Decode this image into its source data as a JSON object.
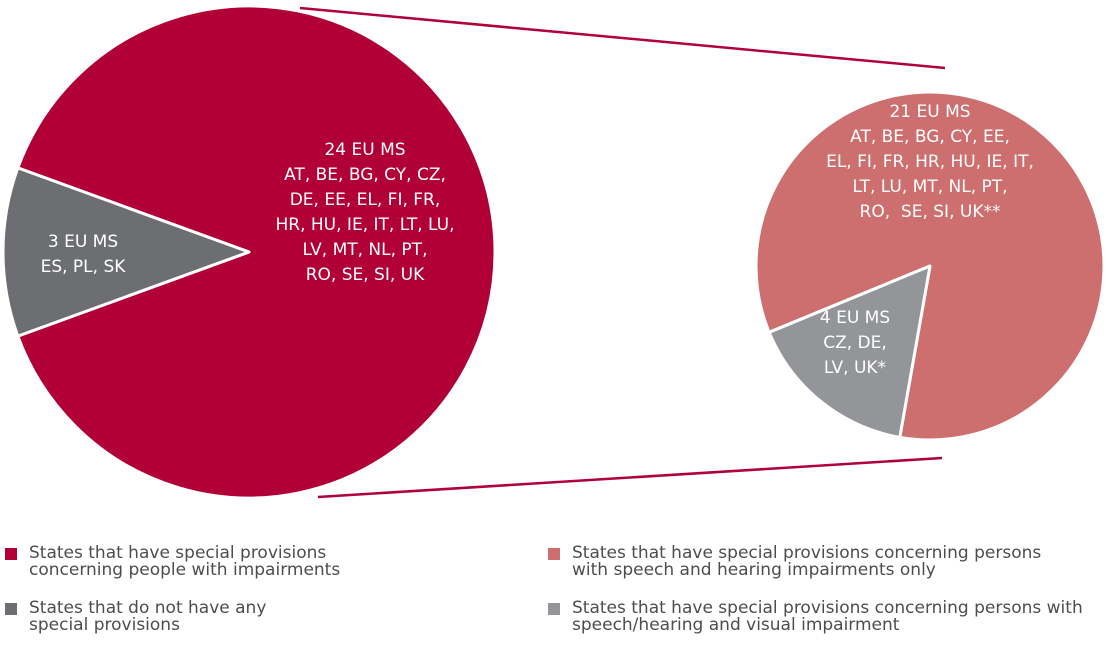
{
  "chart_data": [
    {
      "type": "pie",
      "categories": [
        "States that have special provisions concerning people with impairments",
        "States that do not have any special provisions"
      ],
      "values": [
        24,
        3
      ],
      "value_labels": [
        "24 EU MS",
        "3 EU MS"
      ],
      "details": [
        [
          "AT, BE, BG, CY, CZ,",
          "DE, EE, EL, FI, FR,",
          "HR, HU, IE, IT, LT, LU,",
          "LV, MT, NL, PT,",
          "RO, SE, SI, UK"
        ],
        [
          "ES, PL, SK"
        ]
      ],
      "colors": [
        "#b00037",
        "#6d6e71"
      ]
    },
    {
      "type": "pie",
      "categories": [
        "States that have special provisions concerning persons with speech and hearing impairments only",
        "States that have special provisions concerning persons with speech/hearing and visual impairment"
      ],
      "values": [
        21,
        4
      ],
      "value_labels": [
        "21 EU MS",
        "4 EU MS"
      ],
      "details": [
        [
          "AT, BE, BG, CY, EE,",
          "EL, FI, FR, HR, HU, IE, IT,",
          "LT, LU, MT, NL, PT,",
          "RO,  SE, SI, UK**"
        ],
        [
          "CZ, DE,",
          "LV, UK*"
        ]
      ],
      "colors": [
        "#cd6f6f",
        "#939598"
      ]
    }
  ]
}
